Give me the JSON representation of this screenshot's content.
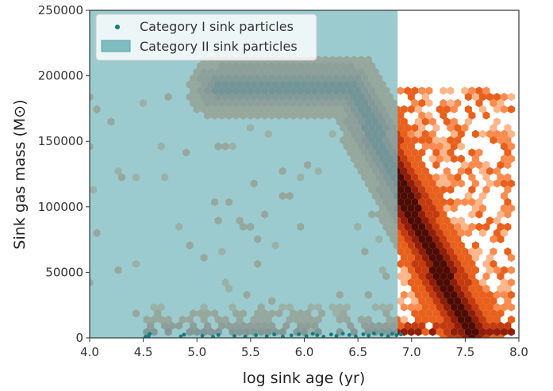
{
  "chart_data": {
    "type": "hexbin-scatter",
    "xlabel": "log sink age (yr)",
    "ylabel": "Sink gas mass (M⊙)",
    "xlim": [
      4.0,
      8.0
    ],
    "ylim": [
      0,
      250000
    ],
    "x_ticks": [
      "4.0",
      "4.5",
      "5.0",
      "5.5",
      "6.0",
      "6.5",
      "7.0",
      "7.5",
      "8.0"
    ],
    "y_ticks": [
      "0",
      "50000",
      "100000",
      "150000",
      "200000",
      "250000"
    ],
    "legend_position": "top-left",
    "grid": false,
    "series": [
      {
        "name": "Category I sink particles",
        "kind": "scatter",
        "color": "#137c80",
        "points": [
          [
            4.52,
            800
          ],
          [
            4.55,
            1500
          ],
          [
            4.56,
            3000
          ],
          [
            4.85,
            1200
          ],
          [
            4.88,
            2500
          ],
          [
            5.05,
            1600
          ],
          [
            5.15,
            900
          ],
          [
            5.2,
            2200
          ],
          [
            5.35,
            1500
          ],
          [
            5.45,
            1000
          ],
          [
            5.55,
            2000
          ],
          [
            5.65,
            1300
          ],
          [
            5.72,
            2600
          ],
          [
            5.8,
            900
          ],
          [
            5.88,
            1900
          ],
          [
            5.95,
            2800
          ],
          [
            6.02,
            1400
          ],
          [
            6.08,
            3200
          ],
          [
            6.12,
            2000
          ],
          [
            6.18,
            900
          ],
          [
            6.25,
            2600
          ],
          [
            6.3,
            1500
          ],
          [
            6.36,
            3300
          ],
          [
            6.42,
            2200
          ],
          [
            6.48,
            1200
          ],
          [
            6.55,
            2800
          ],
          [
            6.6,
            1700
          ],
          [
            6.65,
            3400
          ],
          [
            6.72,
            2300
          ],
          [
            6.78,
            1300
          ],
          [
            6.82,
            3100
          ],
          [
            6.86,
            2000
          ],
          [
            6.9,
            2600
          ]
        ]
      },
      {
        "name": "Category II sink particles",
        "kind": "region",
        "color": "#7fbdc1",
        "x_range": [
          4.0,
          6.87
        ],
        "y_range": [
          0,
          250000
        ]
      },
      {
        "kind": "hexbin-density",
        "colormap": [
          "#fde0c5",
          "#fdb58a",
          "#f98b4e",
          "#e8601c",
          "#c33a0f",
          "#8f1d08",
          "#4d0b04"
        ],
        "ridges": [
          {
            "label": "plateau",
            "x": [
              5.2,
              6.45
            ],
            "y": [
              192000,
              192000
            ]
          },
          {
            "label": "decline",
            "x": [
              6.45,
              7.55
            ],
            "y": [
              192000,
              3000
            ]
          }
        ],
        "scatter_zone": {
          "x": [
            6.87,
            7.95
          ],
          "y": [
            0,
            192000
          ]
        },
        "base_zone": {
          "x": [
            4.5,
            7.95
          ],
          "y": [
            0,
            25000
          ]
        }
      }
    ]
  }
}
